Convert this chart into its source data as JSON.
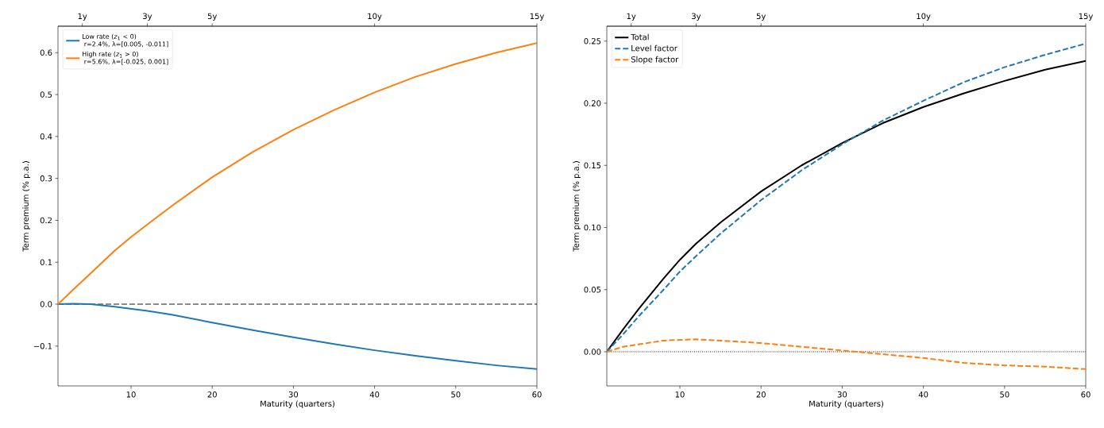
{
  "chart_data": [
    {
      "type": "line",
      "xlabel": "Maturity (quarters)",
      "ylabel": "Term premium (% p.a.)",
      "x": [
        1,
        3,
        5,
        8,
        10,
        12,
        15,
        20,
        25,
        30,
        35,
        40,
        45,
        50,
        55,
        60
      ],
      "series": [
        {
          "name": "Low rate (*z*$_{1}$ < 0)\n  r=2.4%, λ=[0.005, -0.011]",
          "color": "#1f77b4",
          "values": [
            0,
            0.001,
            0.0,
            -0.006,
            -0.011,
            -0.016,
            -0.025,
            -0.044,
            -0.062,
            -0.079,
            -0.095,
            -0.11,
            -0.123,
            -0.135,
            -0.146,
            -0.155
          ]
        },
        {
          "name": "High rate (*z*$_{1}$ > 0)\n  r=5.6%, λ=[-0.025, 0.001]",
          "color": "#ff7f0e",
          "values": [
            0,
            0.037,
            0.073,
            0.128,
            0.16,
            0.19,
            0.234,
            0.303,
            0.363,
            0.416,
            0.463,
            0.505,
            0.542,
            0.573,
            0.6,
            0.623
          ]
        }
      ],
      "xlim": [
        1,
        60
      ],
      "xticks": [
        10,
        20,
        30,
        40,
        50,
        60
      ],
      "ylim": [
        -0.195,
        0.663
      ],
      "yticks": [
        {
          "value": -0.1,
          "label": "−0.1"
        },
        {
          "value": 0,
          "label": "0.0"
        },
        0.1,
        0.2,
        0.3,
        0.4,
        0.5,
        0.6
      ],
      "x2lim": [
        0.25,
        15
      ],
      "x2ticks": [
        {
          "value": 1,
          "label": "1y"
        },
        {
          "value": 3,
          "label": "3y"
        },
        {
          "value": 5,
          "label": "5y"
        },
        {
          "value": 10,
          "label": "10y"
        },
        {
          "value": 15,
          "label": "15y"
        }
      ],
      "ref_lines": [
        {
          "axis": "y",
          "value": 0,
          "color": "#000000",
          "line_style": "dashed"
        }
      ],
      "legend": "top left"
    },
    {
      "type": "line",
      "xlabel": "Maturity (quarters)",
      "ylabel": "Term premium (% p.a.)",
      "x": [
        1,
        3,
        5,
        8,
        10,
        12,
        15,
        20,
        25,
        30,
        35,
        40,
        45,
        50,
        55,
        60
      ],
      "series": [
        {
          "name": "Total",
          "color": "#000000",
          "line_style": "solid",
          "values": [
            0,
            0.018,
            0.035,
            0.059,
            0.074,
            0.087,
            0.104,
            0.129,
            0.15,
            0.168,
            0.184,
            0.197,
            0.208,
            0.218,
            0.227,
            0.234
          ]
        },
        {
          "name": "Level factor",
          "color": "#1f77b4",
          "line_style": "dashed",
          "values": [
            0,
            0.014,
            0.029,
            0.05,
            0.0645,
            0.077,
            0.095,
            0.122,
            0.146,
            0.167,
            0.186,
            0.202,
            0.217,
            0.229,
            0.239,
            0.248
          ]
        },
        {
          "name": "Slope factor",
          "color": "#ff7f0e",
          "line_style": "dashed",
          "values": [
            0,
            0.004,
            0.006,
            0.009,
            0.0095,
            0.01,
            0.009,
            0.007,
            0.004,
            0.001,
            -0.002,
            -0.005,
            -0.009,
            -0.011,
            -0.012,
            -0.014
          ]
        }
      ],
      "xlim": [
        1,
        60
      ],
      "xticks": [
        10,
        20,
        30,
        40,
        50,
        60
      ],
      "ylim": [
        -0.0275,
        0.262
      ],
      "yticks": [
        {
          "value": 0,
          "label": "0.00"
        },
        {
          "value": 0.05,
          "label": "0.05"
        },
        {
          "value": 0.1,
          "label": "0.10"
        },
        {
          "value": 0.15,
          "label": "0.15"
        },
        {
          "value": 0.2,
          "label": "0.20"
        },
        {
          "value": 0.25,
          "label": "0.25"
        }
      ],
      "x2lim": [
        0.25,
        15
      ],
      "x2ticks": [
        {
          "value": 1,
          "label": "1y"
        },
        {
          "value": 3,
          "label": "3y"
        },
        {
          "value": 5,
          "label": "5y"
        },
        {
          "value": 10,
          "label": "10y"
        },
        {
          "value": 15,
          "label": "15y"
        }
      ],
      "ref_lines": [
        {
          "axis": "y",
          "value": 0,
          "color": "#000000",
          "line_style": "dotted"
        }
      ],
      "legend": "top left"
    }
  ]
}
